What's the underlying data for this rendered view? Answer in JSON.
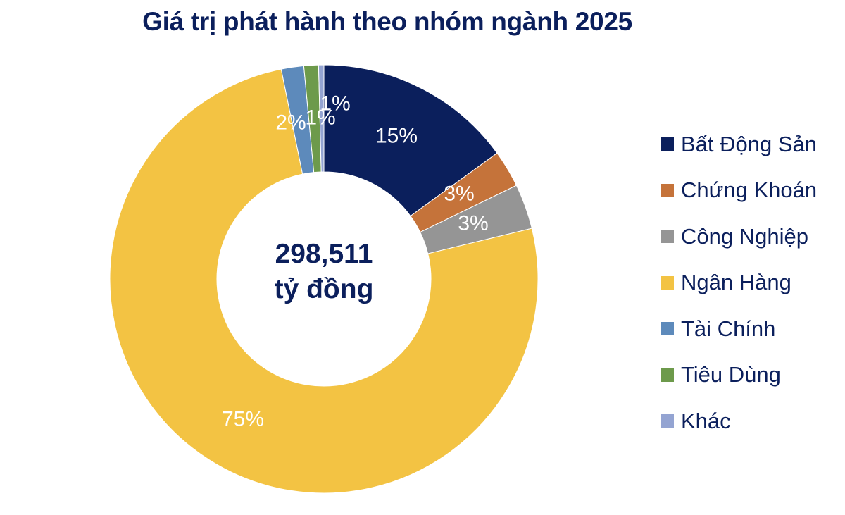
{
  "title": "Giá trị phát hành theo nhóm ngành 2025",
  "center": {
    "value": "298,511",
    "unit": "tỷ đồng"
  },
  "colors": {
    "text": "#0b1f5c",
    "label": "#ffffff"
  },
  "chart_data": {
    "type": "pie",
    "subtype": "donut",
    "title": "Giá trị phát hành theo nhóm ngành 2025",
    "center_label": "298,511 tỷ đồng",
    "total": 298511,
    "unit": "tỷ đồng",
    "legend_position": "right",
    "categories": [
      "Bất Động Sản",
      "Chứng Khoán",
      "Công Nghiệp",
      "Ngân Hàng",
      "Tài Chính",
      "Tiêu Dùng",
      "Khác"
    ],
    "values": [
      15,
      3,
      3,
      75,
      2,
      1,
      1
    ],
    "labels": [
      "15%",
      "3%",
      "3%",
      "75%",
      "2%",
      "1%",
      "1%"
    ],
    "colors": [
      "#0b1f5c",
      "#c5733a",
      "#959595",
      "#f3c343",
      "#5d8abb",
      "#6d9a4b",
      "#94a4d2"
    ]
  },
  "legend": [
    {
      "label": "Bất Động Sản",
      "color": "#0b1f5c"
    },
    {
      "label": "Chứng Khoán",
      "color": "#c5733a"
    },
    {
      "label": "Công Nghiệp",
      "color": "#959595"
    },
    {
      "label": "Ngân Hàng",
      "color": "#f3c343"
    },
    {
      "label": "Tài Chính",
      "color": "#5d8abb"
    },
    {
      "label": "Tiêu Dùng",
      "color": "#6d9a4b"
    },
    {
      "label": "Khác",
      "color": "#94a4d2"
    }
  ]
}
